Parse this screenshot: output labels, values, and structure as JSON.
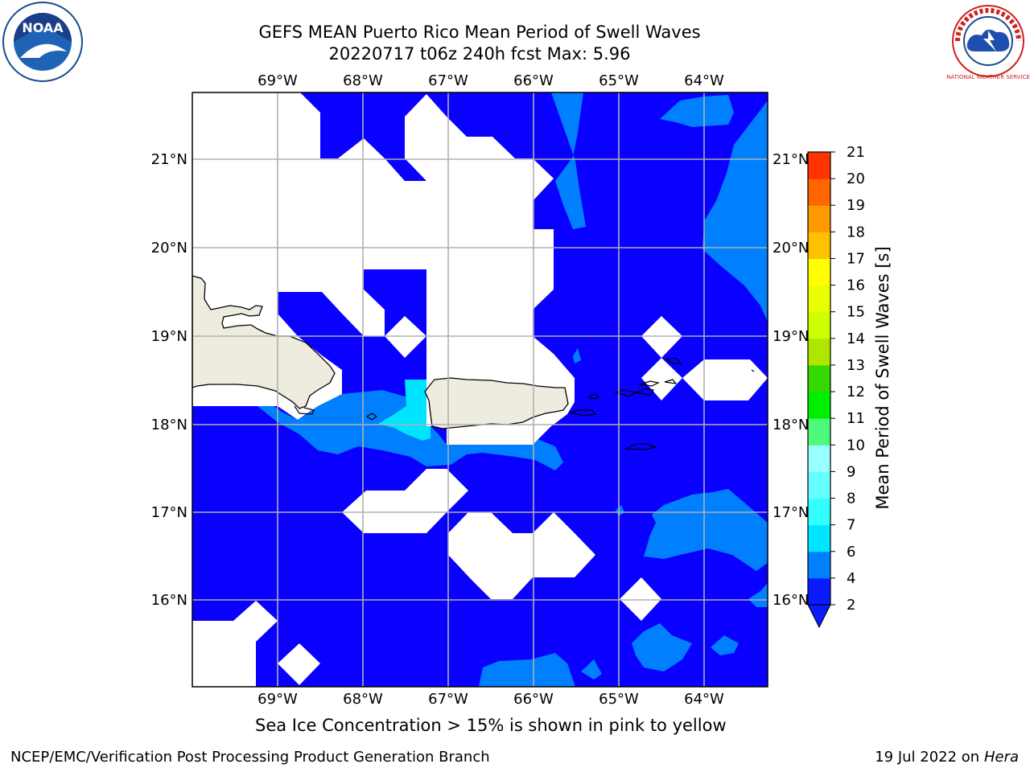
{
  "title_line1": "GEFS MEAN Puerto Rico Mean Period of Swell Waves",
  "title_line2": "20220717 t06z 240h fcst   Max: 5.96",
  "lon_labels": [
    "69°W",
    "68°W",
    "67°W",
    "66°W",
    "65°W",
    "64°W"
  ],
  "lat_labels": [
    "21°N",
    "20°N",
    "19°N",
    "18°N",
    "17°N",
    "16°N"
  ],
  "colorbar": {
    "label": "Mean Period of Swell Waves [s]",
    "ticks": [
      "2",
      "4",
      "6",
      "7",
      "8",
      "9",
      "10",
      "11",
      "12",
      "13",
      "14",
      "15",
      "16",
      "17",
      "18",
      "19",
      "20",
      "21"
    ],
    "colors": [
      "#0a1afe",
      "#0080ff",
      "#00e5ff",
      "#33ffff",
      "#66ffff",
      "#99ffff",
      "#4dfa7a",
      "#00ee00",
      "#33d900",
      "#aee600",
      "#ccff00",
      "#eaff00",
      "#ffff00",
      "#ffc000",
      "#ff9900",
      "#ff6600",
      "#ff3300",
      "#ff0000"
    ]
  },
  "note": "Sea Ice Concentration > 15% is shown in pink to yellow",
  "footer_left": "NCEP/EMC/Verification Post Processing Product Generation Branch",
  "footer_date": "19 Jul 2022 on ",
  "footer_machine": "Hera",
  "logo_left_text": "NOAA",
  "logo_right_text": "NATIONAL WEATHER SERVICE",
  "colors": {
    "ocean_deep": "#0a00ff",
    "ocean_mid": "#0080ff",
    "ocean_light": "#00e5ff",
    "land": "#eeecdf",
    "grid": "#b0b0b0"
  }
}
